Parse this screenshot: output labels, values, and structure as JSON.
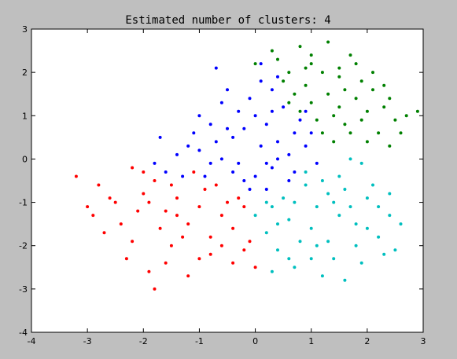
{
  "chart_data": {
    "type": "scatter",
    "title": "Estimated number of clusters: 4",
    "xlabel": "",
    "ylabel": "",
    "xlim": [
      -4,
      3
    ],
    "ylim": [
      -4,
      3
    ],
    "xticks": [
      -4,
      -3,
      -2,
      -1,
      0,
      1,
      2,
      3
    ],
    "yticks": [
      -4,
      -3,
      -2,
      -1,
      0,
      1,
      2,
      3
    ],
    "grid": false,
    "legend": "none",
    "colors": {
      "background": "#bfbfbf",
      "plot_area": "#ffffff"
    },
    "series": [
      {
        "color": "#0000ff",
        "points": [
          [
            -1.4,
            0.1
          ],
          [
            -1.6,
            -0.3
          ],
          [
            -1.2,
            0.3
          ],
          [
            -1.0,
            0.2
          ],
          [
            -0.8,
            -0.1
          ],
          [
            -0.6,
            0.0
          ],
          [
            -0.4,
            -0.3
          ],
          [
            -0.2,
            -0.5
          ],
          [
            0.0,
            -0.4
          ],
          [
            0.2,
            -0.7
          ],
          [
            0.3,
            -0.2
          ],
          [
            0.4,
            0.4
          ],
          [
            0.6,
            0.1
          ],
          [
            0.7,
            0.6
          ],
          [
            0.8,
            0.9
          ],
          [
            0.5,
            1.2
          ],
          [
            0.3,
            1.6
          ],
          [
            0.1,
            1.8
          ],
          [
            -0.1,
            1.4
          ],
          [
            -0.3,
            1.1
          ],
          [
            -0.5,
            0.7
          ],
          [
            -0.7,
            0.4
          ],
          [
            0.9,
            0.3
          ],
          [
            1.1,
            -0.1
          ],
          [
            -0.2,
            0.7
          ],
          [
            0.0,
            1.0
          ],
          [
            0.2,
            0.8
          ],
          [
            0.4,
            0.0
          ],
          [
            -0.4,
            0.5
          ],
          [
            -0.7,
            2.1
          ],
          [
            -1.0,
            1.0
          ],
          [
            0.1,
            2.2
          ],
          [
            -1.7,
            0.5
          ],
          [
            -1.8,
            -0.1
          ],
          [
            -1.3,
            -0.4
          ],
          [
            0.9,
            1.1
          ],
          [
            0.6,
            -0.5
          ],
          [
            0.1,
            0.3
          ],
          [
            -0.3,
            -0.1
          ],
          [
            -0.9,
            -0.4
          ],
          [
            -0.5,
            1.6
          ],
          [
            0.3,
            1.1
          ],
          [
            -0.1,
            -0.7
          ],
          [
            0.7,
            -0.3
          ],
          [
            -1.1,
            0.6
          ],
          [
            -0.6,
            1.3
          ],
          [
            0.4,
            1.9
          ],
          [
            1.0,
            0.6
          ],
          [
            -0.8,
            0.8
          ],
          [
            0.2,
            -0.1
          ]
        ]
      },
      {
        "color": "#ff0000",
        "points": [
          [
            -3.2,
            -0.4
          ],
          [
            -2.8,
            -0.6
          ],
          [
            -2.5,
            -1.0
          ],
          [
            -2.2,
            -0.2
          ],
          [
            -2.0,
            -0.8
          ],
          [
            -1.8,
            -0.5
          ],
          [
            -1.6,
            -1.2
          ],
          [
            -1.4,
            -0.9
          ],
          [
            -1.2,
            -1.5
          ],
          [
            -1.0,
            -1.1
          ],
          [
            -0.8,
            -1.8
          ],
          [
            -0.6,
            -1.3
          ],
          [
            -0.4,
            -1.6
          ],
          [
            -0.2,
            -1.1
          ],
          [
            -0.1,
            -1.9
          ],
          [
            0.0,
            -2.5
          ],
          [
            -0.4,
            -2.4
          ],
          [
            -0.8,
            -2.2
          ],
          [
            -1.0,
            -2.3
          ],
          [
            -1.5,
            -2.0
          ],
          [
            -1.8,
            -3.0
          ],
          [
            -2.2,
            -1.9
          ],
          [
            -2.4,
            -1.5
          ],
          [
            -2.7,
            -1.7
          ],
          [
            -3.0,
            -1.1
          ],
          [
            -1.9,
            -2.6
          ],
          [
            -1.3,
            -1.8
          ],
          [
            -1.7,
            -1.6
          ],
          [
            -2.1,
            -1.2
          ],
          [
            -0.9,
            -0.7
          ],
          [
            -0.3,
            -0.9
          ],
          [
            -1.1,
            -0.3
          ],
          [
            -2.6,
            -0.9
          ],
          [
            -1.5,
            -0.6
          ],
          [
            -0.6,
            -2.0
          ],
          [
            -2.3,
            -2.3
          ],
          [
            -1.9,
            -1.0
          ],
          [
            -0.5,
            -1.0
          ],
          [
            -1.2,
            -2.7
          ],
          [
            -0.2,
            -2.1
          ],
          [
            -2.0,
            -0.3
          ],
          [
            -1.4,
            -1.3
          ],
          [
            -0.7,
            -0.6
          ],
          [
            -2.9,
            -1.3
          ],
          [
            -1.6,
            -2.4
          ]
        ]
      },
      {
        "color": "#008000",
        "points": [
          [
            0.0,
            2.2
          ],
          [
            0.3,
            2.5
          ],
          [
            0.6,
            2.0
          ],
          [
            0.8,
            2.6
          ],
          [
            1.0,
            2.2
          ],
          [
            1.3,
            2.7
          ],
          [
            1.5,
            2.1
          ],
          [
            1.7,
            2.4
          ],
          [
            1.9,
            1.8
          ],
          [
            2.1,
            1.6
          ],
          [
            2.3,
            1.2
          ],
          [
            2.5,
            0.9
          ],
          [
            2.7,
            1.0
          ],
          [
            2.9,
            1.1
          ],
          [
            2.4,
            0.3
          ],
          [
            2.2,
            0.6
          ],
          [
            2.0,
            1.1
          ],
          [
            1.8,
            1.4
          ],
          [
            1.6,
            0.8
          ],
          [
            1.4,
            1.0
          ],
          [
            1.2,
            0.6
          ],
          [
            1.0,
            1.3
          ],
          [
            0.9,
            1.7
          ],
          [
            0.7,
            1.5
          ],
          [
            0.5,
            1.8
          ],
          [
            1.1,
            0.9
          ],
          [
            1.3,
            1.5
          ],
          [
            1.5,
            1.2
          ],
          [
            1.7,
            0.6
          ],
          [
            1.9,
            0.9
          ],
          [
            2.6,
            0.6
          ],
          [
            0.4,
            2.3
          ],
          [
            1.2,
            2.0
          ],
          [
            1.6,
            1.6
          ],
          [
            2.1,
            2.0
          ],
          [
            0.8,
            1.1
          ],
          [
            1.4,
            0.4
          ],
          [
            2.3,
            1.7
          ],
          [
            1.0,
            2.4
          ],
          [
            1.8,
            2.2
          ],
          [
            0.6,
            1.3
          ],
          [
            2.0,
            0.4
          ],
          [
            1.5,
            1.9
          ],
          [
            0.9,
            2.1
          ],
          [
            2.4,
            1.4
          ]
        ]
      },
      {
        "color": "#00bfbf",
        "points": [
          [
            0.0,
            -1.3
          ],
          [
            0.2,
            -1.7
          ],
          [
            0.4,
            -2.1
          ],
          [
            0.3,
            -2.6
          ],
          [
            0.6,
            -2.3
          ],
          [
            0.8,
            -1.9
          ],
          [
            1.0,
            -2.3
          ],
          [
            1.2,
            -2.7
          ],
          [
            1.4,
            -2.3
          ],
          [
            1.6,
            -2.8
          ],
          [
            1.8,
            -2.0
          ],
          [
            2.0,
            -1.6
          ],
          [
            2.2,
            -1.1
          ],
          [
            2.4,
            -0.8
          ],
          [
            2.6,
            -1.5
          ],
          [
            2.5,
            -2.1
          ],
          [
            2.3,
            -2.2
          ],
          [
            2.1,
            -0.6
          ],
          [
            1.9,
            -0.1
          ],
          [
            1.7,
            0.0
          ],
          [
            1.5,
            -0.4
          ],
          [
            1.3,
            -0.8
          ],
          [
            1.1,
            -1.1
          ],
          [
            0.9,
            -0.6
          ],
          [
            0.7,
            -1.0
          ],
          [
            0.5,
            -0.9
          ],
          [
            0.3,
            -1.1
          ],
          [
            1.0,
            -1.6
          ],
          [
            1.5,
            -1.3
          ],
          [
            1.8,
            -1.5
          ],
          [
            0.4,
            -1.5
          ],
          [
            0.7,
            -2.5
          ],
          [
            1.3,
            -1.9
          ],
          [
            2.0,
            -0.9
          ],
          [
            1.6,
            -0.7
          ],
          [
            0.9,
            -0.3
          ],
          [
            1.2,
            -0.5
          ],
          [
            2.2,
            -1.8
          ],
          [
            0.6,
            -1.4
          ],
          [
            1.4,
            -1.0
          ],
          [
            1.1,
            -2.0
          ],
          [
            1.9,
            -2.4
          ],
          [
            0.2,
            -1.0
          ],
          [
            2.4,
            -1.3
          ],
          [
            1.7,
            -1.1
          ]
        ]
      }
    ]
  }
}
